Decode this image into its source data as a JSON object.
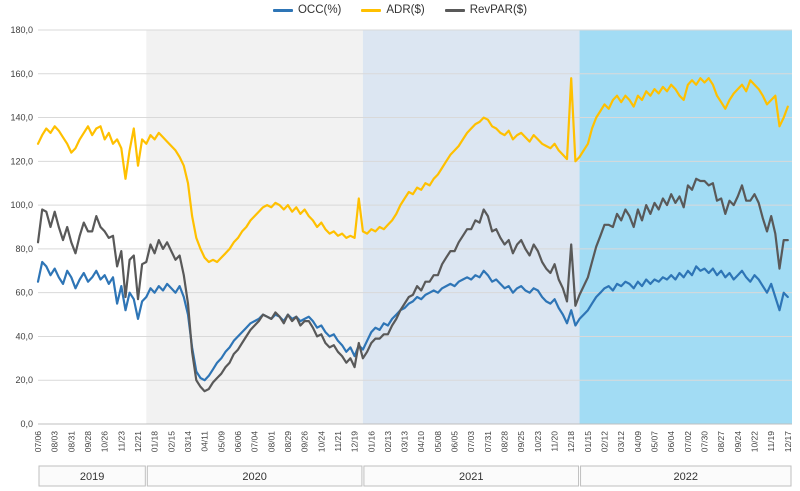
{
  "chart_data": {
    "type": "line",
    "title": "",
    "xlabel": "",
    "ylabel": "",
    "ylim": [
      0,
      180
    ],
    "y_tick_step": 20,
    "y_tick_labels": [
      "0,0",
      "20,0",
      "40,0",
      "60,0",
      "80,0",
      "100,0",
      "120,0",
      "140,0",
      "160,0",
      "180,0"
    ],
    "grid": true,
    "legend_position": "top",
    "total_weeks": 181,
    "x_tick_interval_weeks": 4,
    "x_tick_labels": [
      "07/06",
      "08/03",
      "08/31",
      "09/28",
      "10/26",
      "11/23",
      "12/21",
      "01/18",
      "02/15",
      "03/14",
      "04/11",
      "05/09",
      "06/06",
      "07/04",
      "08/01",
      "08/29",
      "09/26",
      "10/24",
      "11/21",
      "12/19",
      "01/16",
      "02/13",
      "03/13",
      "04/10",
      "05/08",
      "06/05",
      "07/03",
      "07/31",
      "08/28",
      "09/25",
      "10/23",
      "11/20",
      "12/18",
      "01/15",
      "02/12",
      "03/12",
      "04/09",
      "05/07",
      "06/04",
      "07/02",
      "07/30",
      "08/27",
      "09/24",
      "10/22",
      "11/19",
      "12/17"
    ],
    "year_bands": [
      {
        "label": "2019",
        "start_week": 0,
        "end_week": 26,
        "color": "#ffffff"
      },
      {
        "label": "2020",
        "start_week": 26,
        "end_week": 78,
        "color": "#f2f2f2"
      },
      {
        "label": "2021",
        "start_week": 78,
        "end_week": 130,
        "color": "#dce6f2"
      },
      {
        "label": "2022",
        "start_week": 130,
        "end_week": 181,
        "color": "#a2dcf4"
      }
    ],
    "year_box_fill": "#fbfbfb",
    "year_box_border": "#bfbfbf",
    "gridline_color": "#d9d9d9",
    "axis_text_color": "#404040",
    "series": [
      {
        "name": "OCC(%)",
        "color": "#2e75b6",
        "values": [
          65,
          74,
          72,
          68,
          71,
          67,
          64,
          70,
          67,
          62,
          66,
          69,
          65,
          67,
          70,
          66,
          68,
          64,
          67,
          55,
          63,
          52,
          60,
          57,
          48,
          56,
          58,
          62,
          60,
          63,
          61,
          64,
          62,
          60,
          63,
          58,
          50,
          35,
          24,
          21,
          20,
          22,
          25,
          28,
          30,
          33,
          35,
          38,
          40,
          42,
          44,
          46,
          47,
          48,
          50,
          49,
          48,
          50,
          49,
          47,
          50,
          48,
          49,
          47,
          48,
          49,
          47,
          44,
          45,
          42,
          40,
          41,
          38,
          36,
          33,
          35,
          31,
          36,
          34,
          38,
          42,
          44,
          43,
          46,
          45,
          48,
          50,
          52,
          53,
          55,
          56,
          58,
          57,
          59,
          60,
          61,
          60,
          62,
          63,
          64,
          63,
          65,
          66,
          67,
          66,
          68,
          67,
          70,
          68,
          65,
          66,
          64,
          62,
          63,
          60,
          62,
          63,
          61,
          60,
          62,
          61,
          58,
          56,
          55,
          57,
          53,
          50,
          46,
          52,
          45,
          48,
          50,
          52,
          55,
          58,
          60,
          62,
          63,
          61,
          64,
          63,
          65,
          64,
          62,
          65,
          63,
          66,
          64,
          66,
          65,
          67,
          66,
          68,
          66,
          69,
          67,
          70,
          68,
          72,
          70,
          71,
          69,
          71,
          68,
          70,
          67,
          69,
          66,
          68,
          70,
          67,
          65,
          68,
          66,
          63,
          60,
          64,
          58,
          52,
          60,
          58
        ]
      },
      {
        "name": "ADR($)",
        "color": "#ffc000",
        "values": [
          128,
          132,
          135,
          133,
          136,
          134,
          131,
          128,
          124,
          126,
          130,
          133,
          136,
          132,
          135,
          136,
          130,
          133,
          128,
          130,
          126,
          112,
          125,
          135,
          118,
          130,
          128,
          132,
          130,
          133,
          131,
          129,
          127,
          125,
          122,
          118,
          110,
          95,
          85,
          80,
          76,
          74,
          75,
          74,
          76,
          78,
          80,
          83,
          85,
          88,
          90,
          93,
          95,
          97,
          99,
          100,
          99,
          101,
          100,
          98,
          100,
          97,
          99,
          96,
          98,
          95,
          93,
          90,
          92,
          89,
          87,
          88,
          86,
          87,
          85,
          86,
          85,
          103,
          88,
          87,
          89,
          88,
          90,
          89,
          91,
          93,
          96,
          100,
          103,
          106,
          105,
          108,
          107,
          110,
          109,
          112,
          114,
          117,
          120,
          123,
          125,
          127,
          130,
          133,
          135,
          137,
          138,
          140,
          139,
          136,
          135,
          133,
          132,
          134,
          130,
          132,
          133,
          131,
          129,
          132,
          130,
          128,
          127,
          126,
          128,
          125,
          123,
          121,
          158,
          120,
          122,
          125,
          128,
          135,
          140,
          143,
          146,
          144,
          148,
          150,
          147,
          150,
          148,
          145,
          150,
          148,
          152,
          150,
          153,
          151,
          154,
          152,
          155,
          153,
          150,
          148,
          155,
          157,
          155,
          158,
          156,
          158,
          155,
          150,
          147,
          144,
          148,
          151,
          153,
          155,
          152,
          157,
          155,
          153,
          150,
          146,
          148,
          150,
          136,
          140,
          145
        ]
      },
      {
        "name": "RevPAR($)",
        "color": "#595959",
        "values": [
          83,
          98,
          97,
          90,
          97,
          90,
          84,
          90,
          83,
          78,
          86,
          92,
          88,
          88,
          95,
          90,
          88,
          85,
          86,
          72,
          79,
          58,
          75,
          77,
          57,
          73,
          74,
          82,
          78,
          84,
          80,
          83,
          79,
          75,
          77,
          68,
          55,
          33,
          20,
          17,
          15,
          16,
          19,
          21,
          23,
          26,
          28,
          32,
          34,
          37,
          40,
          43,
          45,
          47,
          50,
          49,
          48,
          51,
          49,
          46,
          50,
          47,
          49,
          45,
          47,
          47,
          44,
          40,
          41,
          37,
          35,
          36,
          33,
          31,
          28,
          30,
          26,
          37,
          30,
          33,
          37,
          39,
          39,
          41,
          41,
          45,
          48,
          52,
          55,
          58,
          59,
          63,
          61,
          65,
          65,
          68,
          68,
          73,
          76,
          79,
          79,
          83,
          86,
          89,
          89,
          93,
          92,
          98,
          95,
          88,
          89,
          85,
          82,
          84,
          78,
          82,
          84,
          80,
          77,
          82,
          79,
          74,
          71,
          69,
          73,
          66,
          62,
          56,
          82,
          54,
          59,
          63,
          67,
          74,
          81,
          86,
          91,
          91,
          90,
          96,
          93,
          98,
          95,
          90,
          98,
          93,
          100,
          96,
          101,
          98,
          103,
          100,
          105,
          101,
          104,
          99,
          109,
          107,
          112,
          111,
          111,
          109,
          110,
          102,
          103,
          96,
          102,
          100,
          104,
          109,
          102,
          102,
          105,
          101,
          94,
          88,
          95,
          87,
          71,
          84,
          84
        ]
      }
    ]
  }
}
